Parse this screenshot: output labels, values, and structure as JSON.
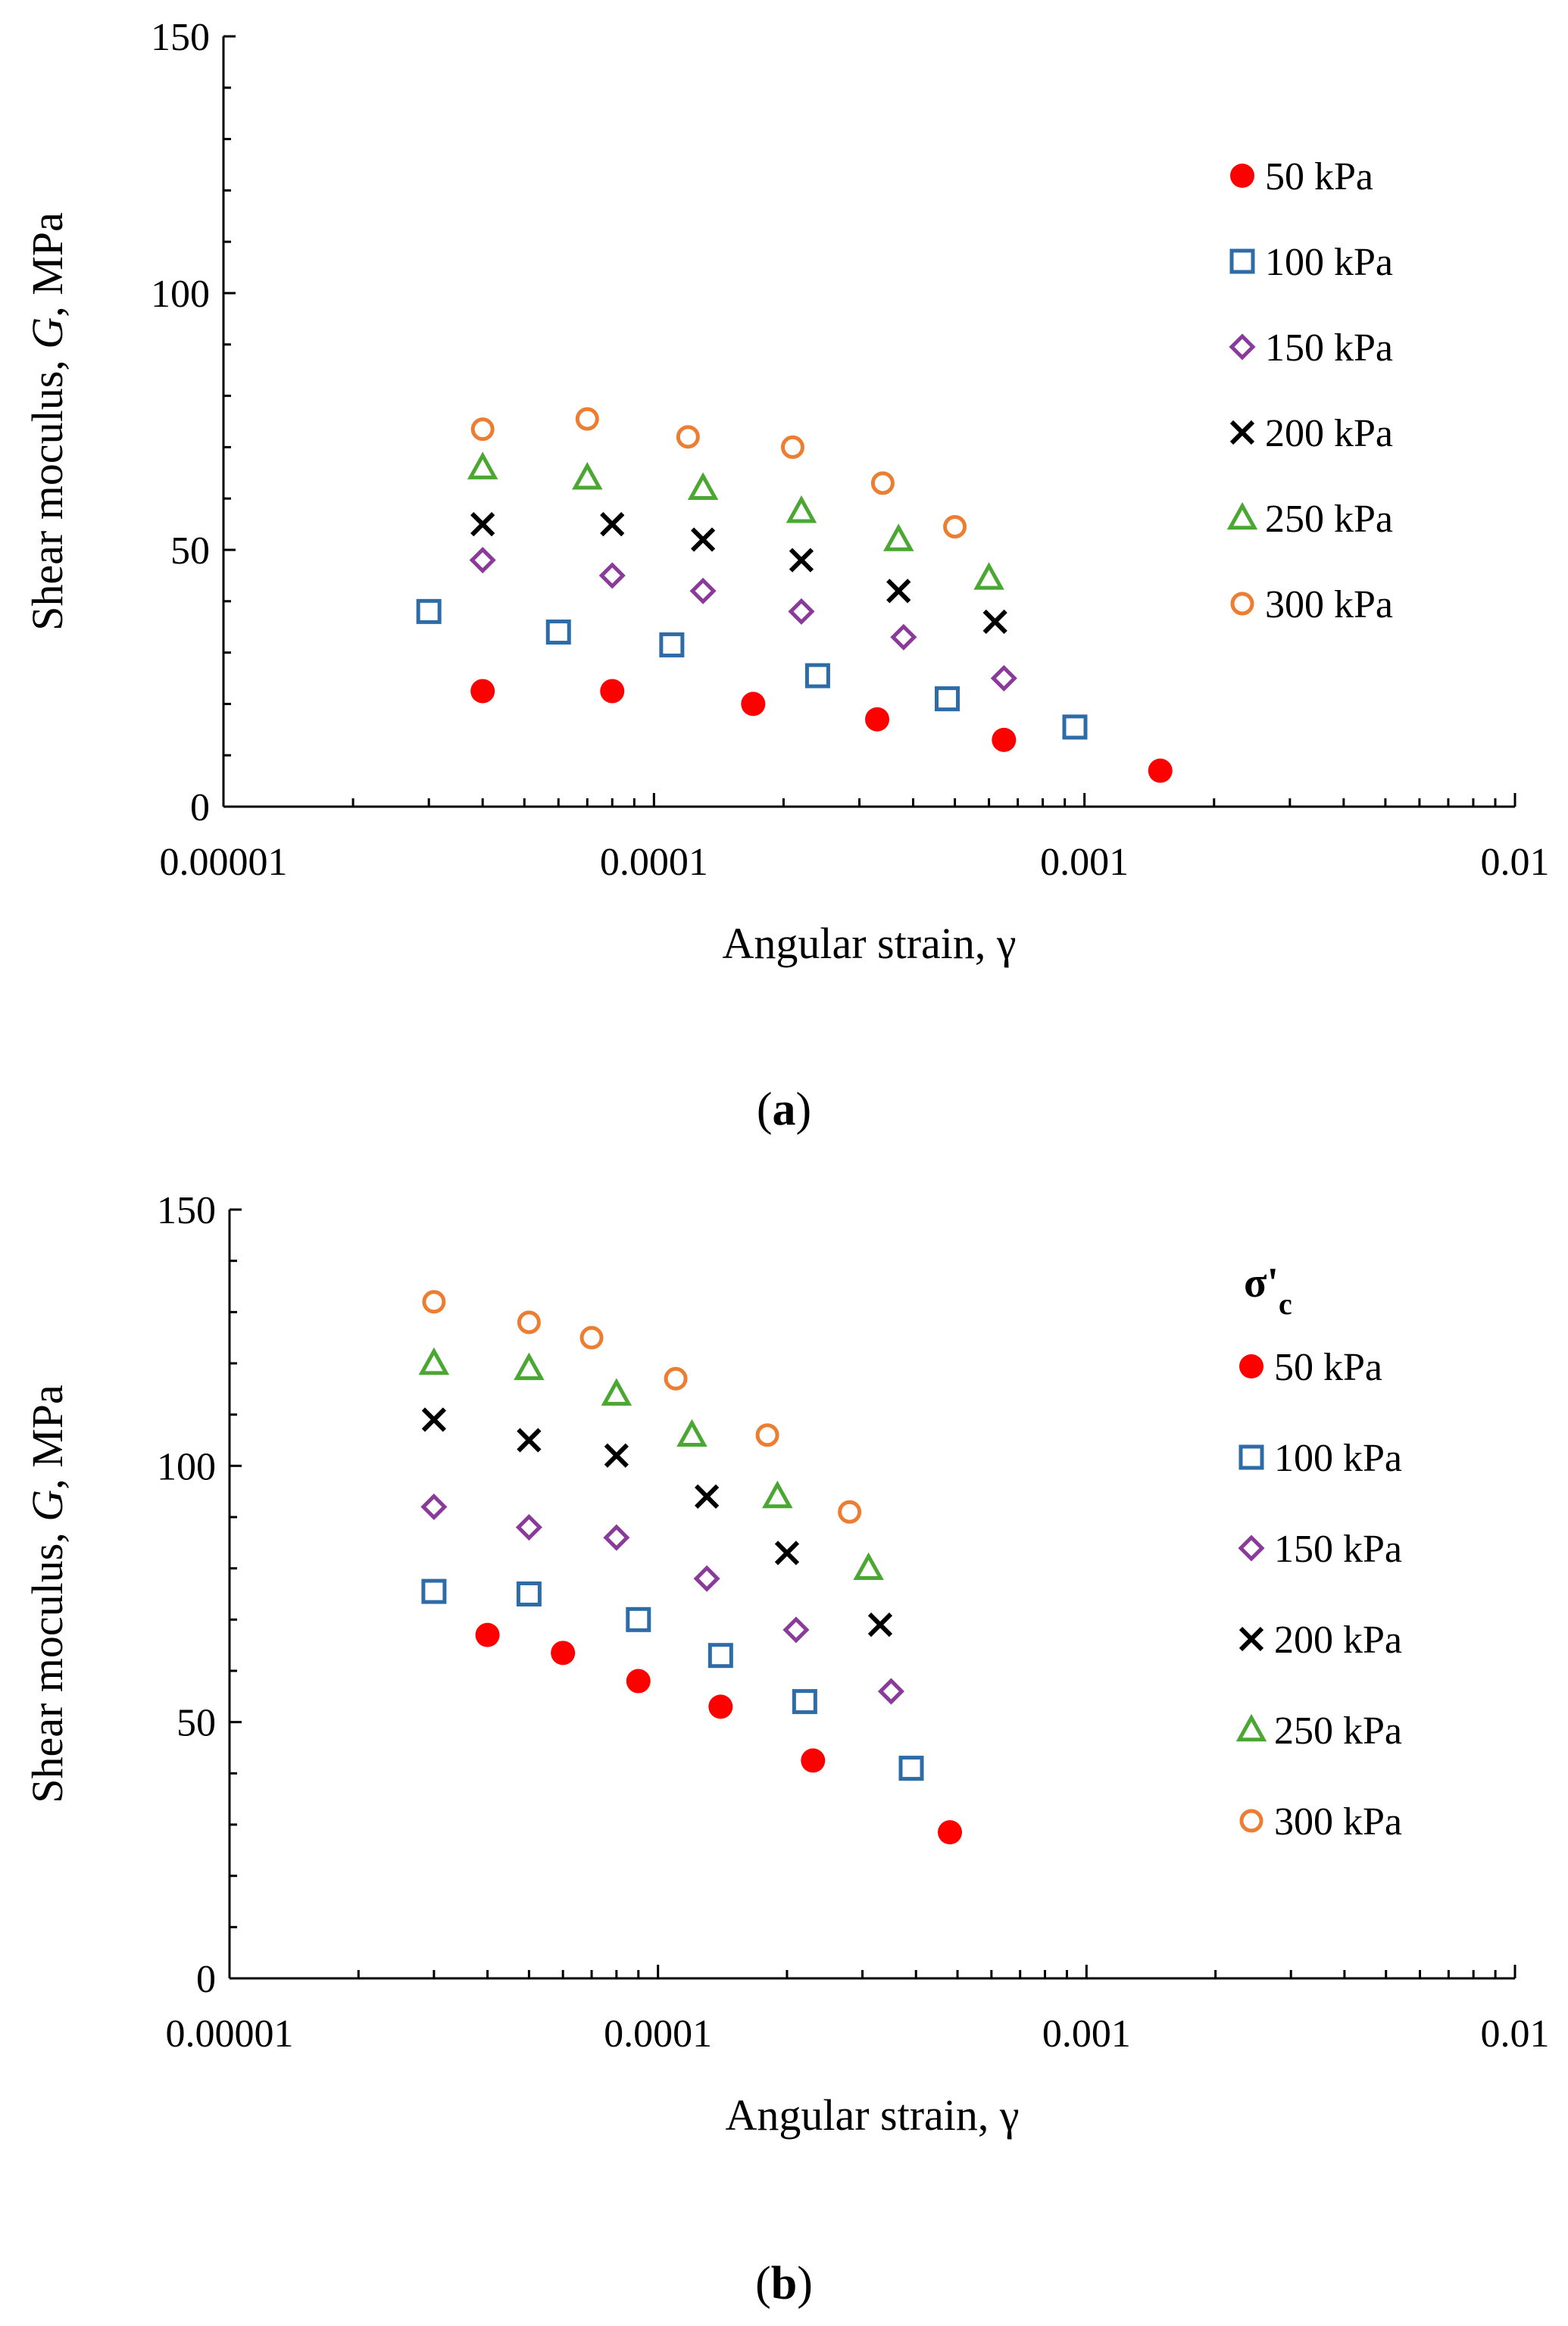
{
  "chart_data": [
    {
      "type": "scatter",
      "panel_label": "(a)",
      "xlabel": "Angular strain, γ",
      "ylabel_parts": [
        "Shear moculus, ",
        "G",
        ", MPa"
      ],
      "xscale": "log",
      "xlim": [
        1e-05,
        0.01
      ],
      "ylim": [
        0,
        150
      ],
      "x_ticks": [
        1e-05,
        0.0001,
        0.001,
        0.01
      ],
      "x_tick_labels": [
        "0.00001",
        "0.0001",
        "0.001",
        "0.01"
      ],
      "y_ticks": [
        0,
        50,
        100,
        150
      ],
      "y_tick_labels": [
        "0",
        "50",
        "100",
        "150"
      ],
      "legend_position": "right",
      "legend_title": "",
      "grid": false,
      "series": [
        {
          "name": "50 kPa",
          "marker": "filled-circle",
          "color": "#ff0000",
          "x": [
            4e-05,
            8e-05,
            0.00017,
            0.00033,
            0.00065,
            0.0015
          ],
          "y": [
            22.5,
            22.5,
            20,
            17,
            13,
            7
          ]
        },
        {
          "name": "100 kPa",
          "marker": "open-square",
          "color": "#2e6ca8",
          "x": [
            3e-05,
            6e-05,
            0.00011,
            0.00024,
            0.00048,
            0.00095
          ],
          "y": [
            38,
            34,
            31.5,
            25.5,
            21,
            15.5
          ]
        },
        {
          "name": "150 kPa",
          "marker": "open-diamond",
          "color": "#8a3a9a",
          "x": [
            4e-05,
            8e-05,
            0.00013,
            0.00022,
            0.00038,
            0.00065
          ],
          "y": [
            48,
            45,
            42,
            38,
            33,
            25
          ]
        },
        {
          "name": "200 kPa",
          "marker": "cross",
          "color": "#000000",
          "x": [
            4e-05,
            8e-05,
            0.00013,
            0.00022,
            0.00037,
            0.00062
          ],
          "y": [
            55,
            55,
            52,
            48,
            42,
            36
          ]
        },
        {
          "name": "250 kPa",
          "marker": "open-triangle",
          "color": "#4aa832",
          "x": [
            4e-05,
            7e-05,
            0.00013,
            0.00022,
            0.00037,
            0.0006
          ],
          "y": [
            66,
            64,
            62,
            57.5,
            52,
            44.5
          ]
        },
        {
          "name": "300 kPa",
          "marker": "open-circle",
          "color": "#ed7d31",
          "x": [
            4e-05,
            7e-05,
            0.00012,
            0.00021,
            0.00034,
            0.0005
          ],
          "y": [
            73.5,
            75.5,
            72,
            70,
            63,
            54.5
          ]
        }
      ]
    },
    {
      "type": "scatter",
      "panel_label": "(b)",
      "xlabel": "Angular strain, γ",
      "ylabel_parts": [
        "Shear moculus, ",
        "G",
        ", MPa"
      ],
      "xscale": "log",
      "xlim": [
        1e-05,
        0.01
      ],
      "ylim": [
        0,
        150
      ],
      "x_ticks": [
        1e-05,
        0.0001,
        0.001,
        0.01
      ],
      "x_tick_labels": [
        "0.00001",
        "0.0001",
        "0.001",
        "0.01"
      ],
      "y_ticks": [
        0,
        50,
        100,
        150
      ],
      "y_tick_labels": [
        "0",
        "50",
        "100",
        "150"
      ],
      "legend_position": "right",
      "legend_title": "σ'c",
      "grid": false,
      "series": [
        {
          "name": "50 kPa",
          "marker": "filled-circle",
          "color": "#ff0000",
          "x": [
            4e-05,
            6e-05,
            9e-05,
            0.00014,
            0.00023,
            0.00048
          ],
          "y": [
            67,
            63.5,
            58,
            53,
            42.5,
            28.5
          ]
        },
        {
          "name": "100 kPa",
          "marker": "open-square",
          "color": "#2e6ca8",
          "x": [
            3e-05,
            5e-05,
            9e-05,
            0.00014,
            0.00022,
            0.00039
          ],
          "y": [
            75.5,
            75,
            70,
            63,
            54,
            41
          ]
        },
        {
          "name": "150 kPa",
          "marker": "open-diamond",
          "color": "#8a3a9a",
          "x": [
            3e-05,
            5e-05,
            8e-05,
            0.00013,
            0.00021,
            0.00035
          ],
          "y": [
            92,
            88,
            86,
            78,
            68,
            56
          ]
        },
        {
          "name": "200 kPa",
          "marker": "cross",
          "color": "#000000",
          "x": [
            3e-05,
            5e-05,
            8e-05,
            0.00013,
            0.0002,
            0.00033
          ],
          "y": [
            109,
            105,
            102,
            94,
            83,
            69
          ]
        },
        {
          "name": "250 kPa",
          "marker": "open-triangle",
          "color": "#4aa832",
          "x": [
            3e-05,
            5e-05,
            8e-05,
            0.00012,
            0.00019,
            0.00031
          ],
          "y": [
            120,
            119,
            114,
            106,
            94,
            80
          ]
        },
        {
          "name": "300 kPa",
          "marker": "open-circle",
          "color": "#ed7d31",
          "x": [
            3e-05,
            5e-05,
            7e-05,
            0.00011,
            0.00018,
            0.00028
          ],
          "y": [
            132,
            128,
            125,
            117,
            106,
            91
          ]
        }
      ]
    }
  ]
}
